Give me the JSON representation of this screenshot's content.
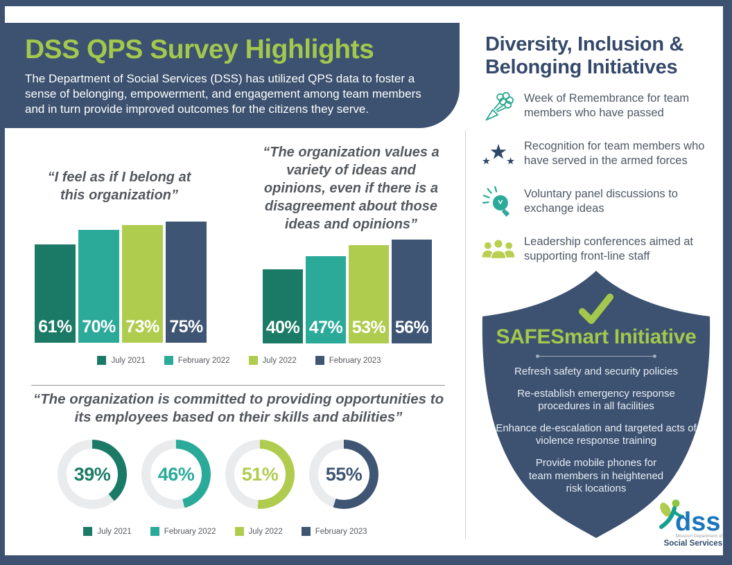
{
  "colors": {
    "navy": "#3d5270",
    "bar_navy": "#3e5574",
    "teal_dark": "#1b7a66",
    "teal": "#2baa9a",
    "lime": "#b0cc4f",
    "accent_green": "#a2c84e",
    "quote_gray": "#54585e",
    "donut_track": "#e9ebec"
  },
  "header": {
    "title": "DSS QPS Survey Highlights",
    "subtitle": "The Department of Social Services (DSS) has utilized QPS data to foster a sense of belonging, empowerment, and engagement among team members and in turn provide improved outcomes for the citizens they serve."
  },
  "legend": [
    {
      "label": "July 2021",
      "color": "#1b7a66"
    },
    {
      "label": "February 2022",
      "color": "#2baa9a"
    },
    {
      "label": "July 2022",
      "color": "#b0cc4f"
    },
    {
      "label": "February 2023",
      "color": "#3e5574"
    }
  ],
  "chart_data": [
    {
      "type": "bar",
      "title": "“I feel as if I belong at this organization”",
      "categories": [
        "July 2021",
        "February 2022",
        "July 2022",
        "February 2023"
      ],
      "values": [
        61,
        70,
        73,
        75
      ],
      "unit": "%",
      "value_labels": [
        "61%",
        "70%",
        "73%",
        "75%"
      ],
      "ylim": [
        0,
        100
      ],
      "legend_position": "bottom"
    },
    {
      "type": "bar",
      "title": "“The organization values a variety of ideas and opinions, even if there is a disagreement about those ideas and opinions”",
      "categories": [
        "July 2021",
        "February 2022",
        "July 2022",
        "February 2023"
      ],
      "values": [
        40,
        47,
        53,
        56
      ],
      "unit": "%",
      "value_labels": [
        "40%",
        "47%",
        "53%",
        "56%"
      ],
      "ylim": [
        0,
        100
      ],
      "legend_position": "bottom"
    },
    {
      "type": "donut",
      "title": "“The organization is committed to providing opportunities to its employees based on their skills and abilities”",
      "categories": [
        "July 2021",
        "February 2022",
        "July 2022",
        "February 2023"
      ],
      "values": [
        39,
        46,
        51,
        55
      ],
      "unit": "%",
      "value_labels": [
        "39%",
        "46%",
        "51%",
        "55%"
      ],
      "legend_position": "bottom"
    }
  ],
  "sidebar": {
    "title": "Diversity, Inclusion & Belonging Initiatives",
    "items": [
      {
        "icon": "bouquet-icon",
        "text": "Week of Remembrance for team members who have passed"
      },
      {
        "icon": "stars-icon",
        "text": "Recognition for team members who have served in the armed forces"
      },
      {
        "icon": "lightbulb-icon",
        "text": "Voluntary panel discussions to exchange ideas"
      },
      {
        "icon": "people-group-icon",
        "text": "Leadership conferences aimed at supporting front-line staff"
      }
    ]
  },
  "shield": {
    "title": "SAFESmart Initiative",
    "items": [
      "Refresh safety and security policies",
      "Re-establish emergency response procedures in all facilities",
      "Enhance de-escalation and targeted acts of violence response training",
      "Provide mobile phones for team members in heightened risk locations"
    ]
  },
  "logo": {
    "acronym": "dss",
    "line1": "Missouri Department of",
    "line2": "Social Services"
  }
}
